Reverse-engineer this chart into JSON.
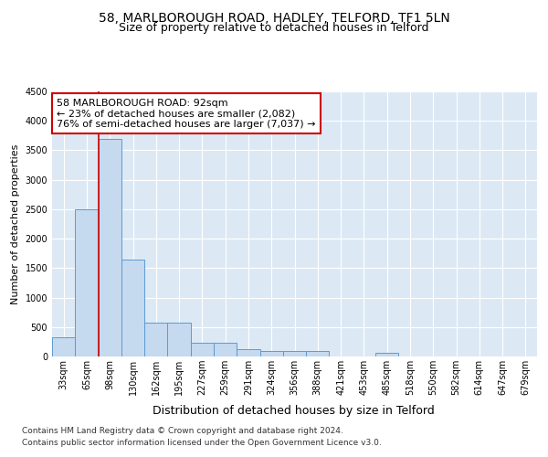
{
  "title1": "58, MARLBOROUGH ROAD, HADLEY, TELFORD, TF1 5LN",
  "title2": "Size of property relative to detached houses in Telford",
  "xlabel": "Distribution of detached houses by size in Telford",
  "ylabel": "Number of detached properties",
  "categories": [
    "33sqm",
    "65sqm",
    "98sqm",
    "130sqm",
    "162sqm",
    "195sqm",
    "227sqm",
    "259sqm",
    "291sqm",
    "324sqm",
    "356sqm",
    "388sqm",
    "421sqm",
    "453sqm",
    "485sqm",
    "518sqm",
    "550sqm",
    "582sqm",
    "614sqm",
    "647sqm",
    "679sqm"
  ],
  "values": [
    330,
    2500,
    3700,
    1650,
    570,
    570,
    235,
    235,
    130,
    100,
    100,
    100,
    0,
    0,
    60,
    0,
    0,
    0,
    0,
    0,
    0
  ],
  "bar_color": "#c5d9ef",
  "bar_edge_color": "#5b9bd5",
  "vline_x": 1.5,
  "vline_color": "#cc0000",
  "annotation_text": "58 MARLBOROUGH ROAD: 92sqm\n← 23% of detached houses are smaller (2,082)\n76% of semi-detached houses are larger (7,037) →",
  "annotation_box_color": "#cc0000",
  "footnote1": "Contains HM Land Registry data © Crown copyright and database right 2024.",
  "footnote2": "Contains public sector information licensed under the Open Government Licence v3.0.",
  "ylim": [
    0,
    4500
  ],
  "yticks": [
    0,
    500,
    1000,
    1500,
    2000,
    2500,
    3000,
    3500,
    4000,
    4500
  ],
  "bg_color": "#dce9f5",
  "fig_bg": "#ffffff",
  "title1_fontsize": 10,
  "title2_fontsize": 9,
  "xlabel_fontsize": 9,
  "ylabel_fontsize": 8,
  "tick_fontsize": 7,
  "annot_fontsize": 8,
  "footnote_fontsize": 6.5
}
